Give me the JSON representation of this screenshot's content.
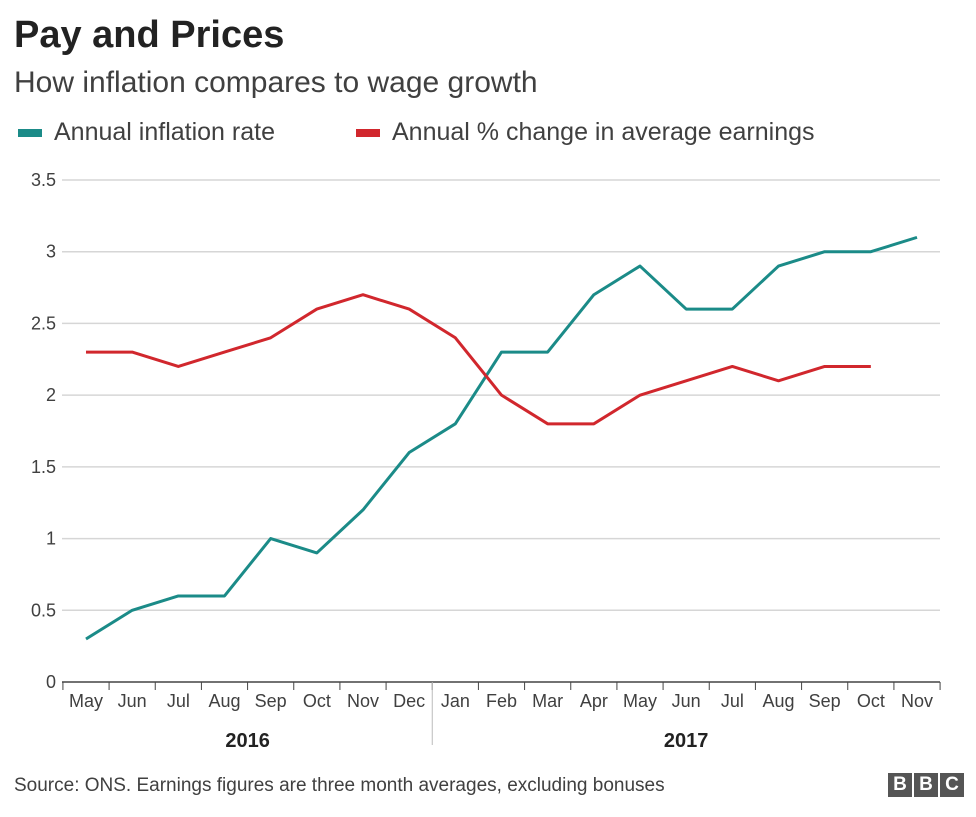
{
  "colors": {
    "inflation": "#1b8b88",
    "earnings": "#d1272d"
  },
  "chart_data": {
    "type": "line",
    "title": "Pay and Prices",
    "subtitle": "How inflation compares to wage growth",
    "categories": [
      "May",
      "Jun",
      "Jul",
      "Aug",
      "Sep",
      "Oct",
      "Nov",
      "Dec",
      "Jan",
      "Feb",
      "Mar",
      "Apr",
      "May",
      "Jun",
      "Jul",
      "Aug",
      "Sep",
      "Oct",
      "Nov"
    ],
    "year_groups": [
      {
        "label": "2016",
        "start": 0,
        "end": 7
      },
      {
        "label": "2017",
        "start": 8,
        "end": 18
      }
    ],
    "series": [
      {
        "name": "Annual inflation rate",
        "values": [
          0.3,
          0.5,
          0.6,
          0.6,
          1.0,
          0.9,
          1.2,
          1.6,
          1.8,
          2.3,
          2.3,
          2.7,
          2.9,
          2.6,
          2.6,
          2.9,
          3.0,
          3.0,
          3.1
        ]
      },
      {
        "name": "Annual % change in average earnings",
        "values": [
          2.3,
          2.3,
          2.2,
          2.3,
          2.4,
          2.6,
          2.7,
          2.6,
          2.4,
          2.0,
          1.8,
          1.8,
          2.0,
          2.1,
          2.2,
          2.1,
          2.2,
          2.2,
          null
        ]
      }
    ],
    "yticks": [
      "0",
      "0.5",
      "1",
      "1.5",
      "2",
      "2.5",
      "3",
      "3.5"
    ],
    "ylim": [
      0,
      3.5
    ],
    "grid": true,
    "legend": "top-left"
  },
  "source": "Source: ONS. Earnings figures are three month averages, excluding bonuses",
  "logo": "BBC"
}
